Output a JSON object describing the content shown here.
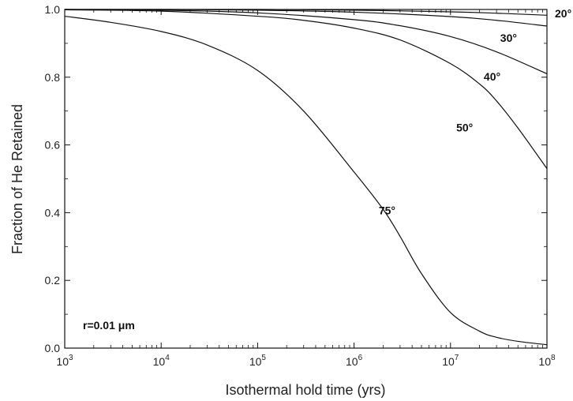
{
  "chart_data": {
    "type": "line",
    "title": "",
    "xlabel": "Isothermal hold time (yrs)",
    "ylabel": "Fraction of He Retained",
    "xscale": "log",
    "xlim": [
      1000,
      100000000
    ],
    "ylim": [
      0,
      1.0
    ],
    "xticks": [
      {
        "value": 1000,
        "base": "10",
        "exp": "3"
      },
      {
        "value": 10000,
        "base": "10",
        "exp": "4"
      },
      {
        "value": 100000,
        "base": "10",
        "exp": "5"
      },
      {
        "value": 1000000,
        "base": "10",
        "exp": "6"
      },
      {
        "value": 10000000,
        "base": "10",
        "exp": "7"
      },
      {
        "value": 100000000,
        "base": "10",
        "exp": "8"
      }
    ],
    "yticks": [
      {
        "value": 0.0,
        "label": "0.0"
      },
      {
        "value": 0.2,
        "label": "0.2"
      },
      {
        "value": 0.4,
        "label": "0.4"
      },
      {
        "value": 0.6,
        "label": "0.6"
      },
      {
        "value": 0.8,
        "label": "0.8"
      },
      {
        "value": 1.0,
        "label": "1.0"
      }
    ],
    "annotation": "r=0.01 μm",
    "grid": false,
    "series": [
      {
        "name": "20°",
        "x": [
          1000,
          10000,
          100000,
          1000000,
          10000000,
          30000000,
          100000000
        ],
        "y": [
          1.0,
          1.0,
          1.0,
          0.998,
          0.993,
          0.989,
          0.983
        ]
      },
      {
        "name": "30°",
        "x": [
          1000,
          10000,
          100000,
          1000000,
          10000000,
          30000000,
          100000000
        ],
        "y": [
          1.0,
          1.0,
          0.998,
          0.992,
          0.979,
          0.968,
          0.951
        ]
      },
      {
        "name": "40°",
        "x": [
          1000,
          10000,
          100000,
          1000000,
          3000000,
          10000000,
          30000000,
          100000000
        ],
        "y": [
          1.0,
          0.998,
          0.99,
          0.97,
          0.952,
          0.92,
          0.875,
          0.81
        ]
      },
      {
        "name": "50°",
        "x": [
          1000,
          10000,
          100000,
          300000,
          1000000,
          3000000,
          10000000,
          20000000,
          30000000,
          50000000,
          100000000
        ],
        "y": [
          0.999,
          0.995,
          0.98,
          0.968,
          0.945,
          0.91,
          0.84,
          0.78,
          0.73,
          0.65,
          0.53
        ]
      },
      {
        "name": "75°",
        "x": [
          1000,
          3000,
          10000,
          30000,
          100000,
          300000,
          1000000,
          2000000,
          3000000,
          5000000,
          10000000,
          20000000,
          30000000,
          50000000,
          100000000
        ],
        "y": [
          0.98,
          0.962,
          0.935,
          0.895,
          0.82,
          0.7,
          0.52,
          0.41,
          0.33,
          0.22,
          0.105,
          0.05,
          0.032,
          0.02,
          0.01
        ]
      }
    ]
  }
}
